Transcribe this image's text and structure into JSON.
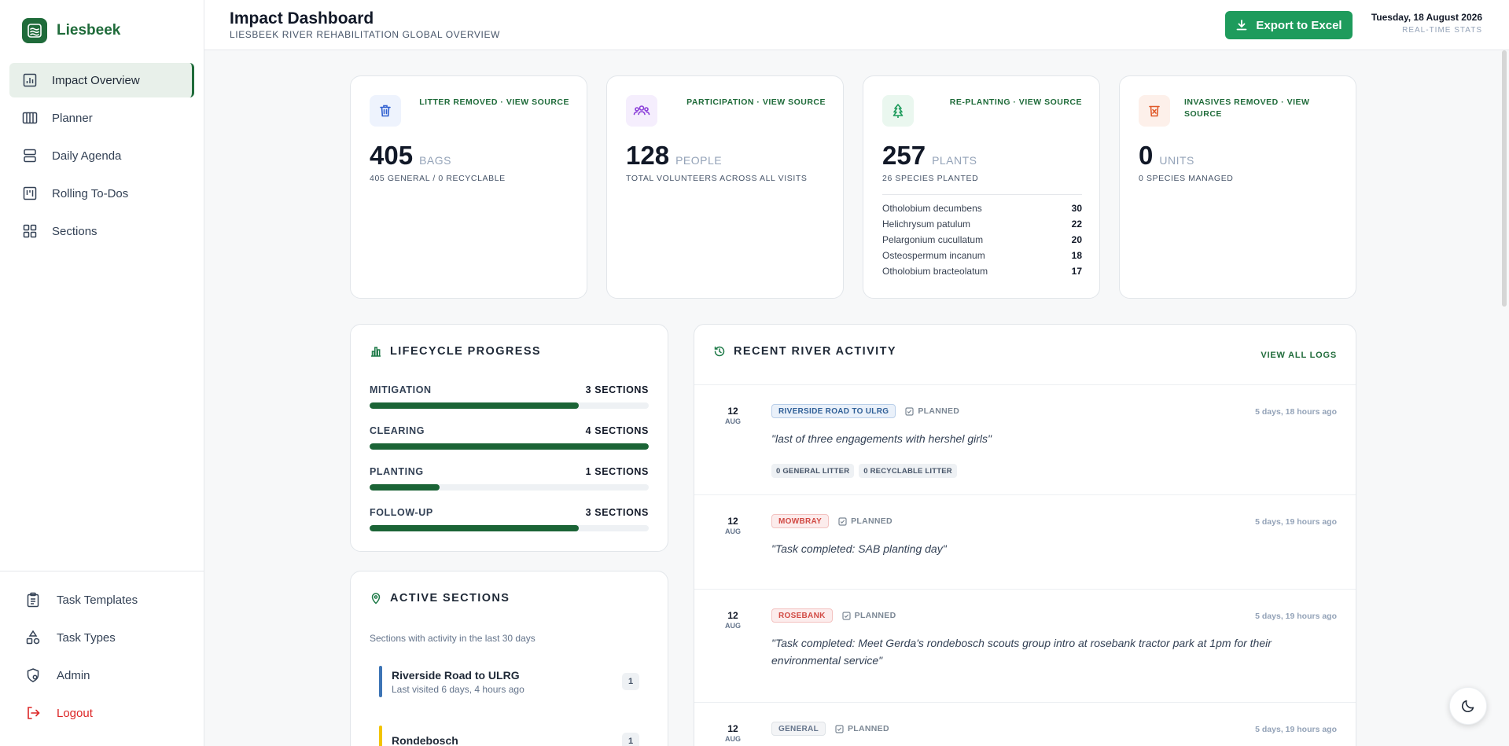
{
  "brand": {
    "name": "Liesbeek"
  },
  "sidebar": {
    "items": [
      {
        "label": "Impact Overview",
        "icon": "chart-icon",
        "active": true
      },
      {
        "label": "Planner",
        "icon": "columns-icon"
      },
      {
        "label": "Daily Agenda",
        "icon": "agenda-icon"
      },
      {
        "label": "Rolling To-Dos",
        "icon": "kanban-icon"
      },
      {
        "label": "Sections",
        "icon": "grid-icon"
      }
    ],
    "bottom_items": [
      {
        "label": "Task Templates",
        "icon": "clipboard-icon"
      },
      {
        "label": "Task Types",
        "icon": "shapes-icon"
      },
      {
        "label": "Admin",
        "icon": "shield-icon"
      },
      {
        "label": "Logout",
        "icon": "logout-icon"
      }
    ]
  },
  "header": {
    "title": "Impact Dashboard",
    "subtitle": "LIESBEEK RIVER REHABILITATION GLOBAL OVERVIEW",
    "export_label": "Export to Excel",
    "date": "Tuesday, 18 August 2026",
    "realtime": "REAL-TIME STATS"
  },
  "stats": [
    {
      "label": "LITTER REMOVED · VIEW SOURCE",
      "value": "405",
      "unit": "BAGS",
      "sub": "405 GENERAL / 0 RECYCLABLE",
      "icon": "trash-icon",
      "color": "#2f5fd0",
      "bg": "#eef3fd"
    },
    {
      "label": "PARTICIPATION · VIEW SOURCE",
      "value": "128",
      "unit": "PEOPLE",
      "sub": "TOTAL VOLUNTEERS ACROSS ALL VISITS",
      "icon": "people-icon",
      "color": "#8b3fd9",
      "bg": "#f5eefd"
    },
    {
      "label": "RE-PLANTING · VIEW SOURCE",
      "value": "257",
      "unit": "PLANTS",
      "sub": "26 SPECIES PLANTED",
      "icon": "tree-icon",
      "color": "#1e9b5c",
      "bg": "#eaf7ef",
      "species": [
        {
          "name": "Otholobium decumbens",
          "count": "30"
        },
        {
          "name": "Helichrysum patulum",
          "count": "22"
        },
        {
          "name": "Pelargonium cucullatum",
          "count": "20"
        },
        {
          "name": "Osteospermum incanum",
          "count": "18"
        },
        {
          "name": "Otholobium bracteolatum",
          "count": "17"
        }
      ]
    },
    {
      "label": "INVASIVES REMOVED · VIEW SOURCE",
      "value": "0",
      "unit": "UNITS",
      "sub": "0 SPECIES MANAGED",
      "icon": "invasive-icon",
      "color": "#e0592a",
      "bg": "#fdf0ea"
    }
  ],
  "lifecycle": {
    "title": "LIFECYCLE PROGRESS",
    "rows": [
      {
        "name": "MITIGATION",
        "count": "3 SECTIONS",
        "progress": 0.75
      },
      {
        "name": "CLEARING",
        "count": "4 SECTIONS",
        "progress": 1.0
      },
      {
        "name": "PLANTING",
        "count": "1 SECTIONS",
        "progress": 0.25
      },
      {
        "name": "FOLLOW-UP",
        "count": "3 SECTIONS",
        "progress": 0.75
      }
    ]
  },
  "active_sections": {
    "title": "ACTIVE SECTIONS",
    "description": "Sections with activity in the last 30 days",
    "items": [
      {
        "name": "Riverside Road to ULRG",
        "last": "Last visited 6 days, 4 hours ago",
        "count": "1",
        "color": "#3d74b5"
      },
      {
        "name": "Rondebosch",
        "last": "",
        "count": "1",
        "color": "#f2c400"
      }
    ]
  },
  "recent_activity": {
    "title": "RECENT RIVER ACTIVITY",
    "view_all": "VIEW ALL LOGS",
    "items": [
      {
        "day": "12",
        "month": "AUG",
        "section": "RIVERSIDE ROAD TO ULRG",
        "tag_style": "blue",
        "status": "PLANNED",
        "time": "5 days, 18 hours ago",
        "note": "\"last of three engagements with hershel girls\"",
        "chips": [
          "0 GENERAL LITTER",
          "0 RECYCLABLE LITTER"
        ]
      },
      {
        "day": "12",
        "month": "AUG",
        "section": "MOWBRAY",
        "tag_style": "red",
        "status": "PLANNED",
        "time": "5 days, 19 hours ago",
        "note": "\"Task completed: SAB planting day\"",
        "chips": []
      },
      {
        "day": "12",
        "month": "AUG",
        "section": "ROSEBANK",
        "tag_style": "red",
        "status": "PLANNED",
        "time": "5 days, 19 hours ago",
        "note": "\"Task completed: Meet Gerda's rondebosch scouts group intro at rosebank tractor park at 1pm for their environmental service\"",
        "chips": []
      },
      {
        "day": "12",
        "month": "AUG",
        "section": "GENERAL",
        "tag_style": "gray",
        "status": "PLANNED",
        "time": "5 days, 19 hours ago",
        "note": "",
        "chips": []
      }
    ]
  },
  "theme_toggle": {
    "icon": "moon-icon"
  }
}
